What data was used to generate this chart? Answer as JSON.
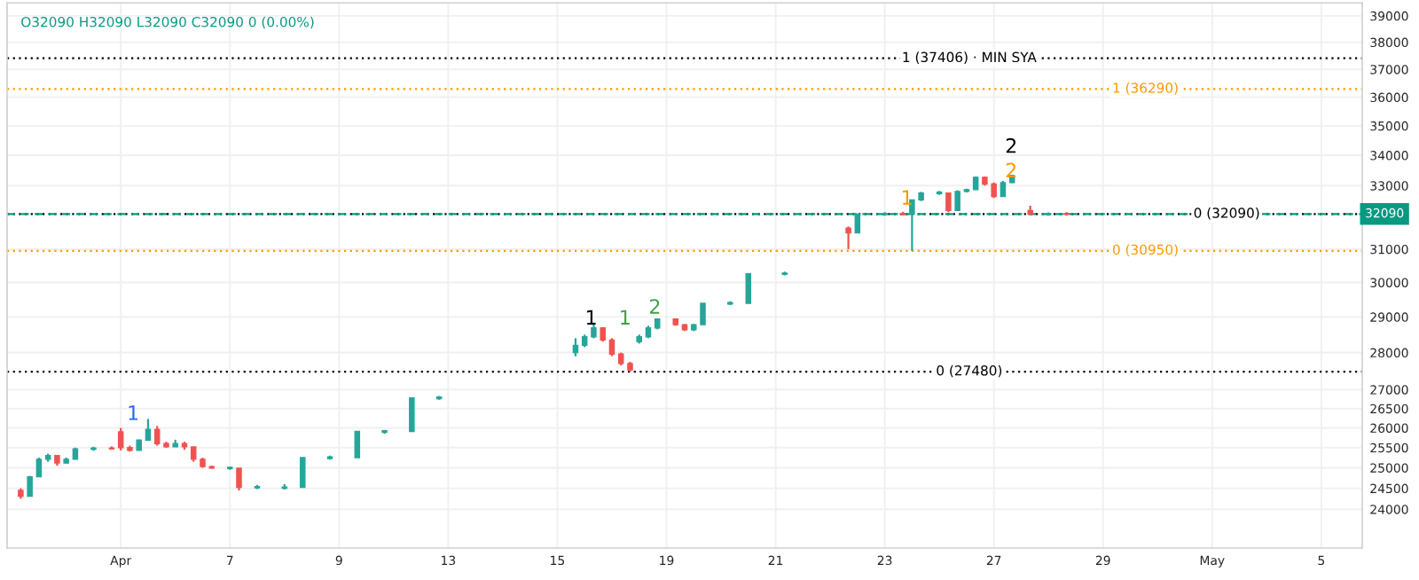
{
  "chart_data": {
    "type": "candlestick",
    "title": "O32090 H32090 L32090 C32090 0 (0.00%)",
    "categories": [
      null,
      null,
      null,
      null,
      null,
      null,
      null,
      null,
      null,
      null,
      null,
      null,
      "Apr",
      null,
      null,
      null,
      null,
      null,
      null,
      null,
      null,
      null,
      null,
      null,
      "7",
      null,
      null,
      null,
      null,
      null,
      null,
      null,
      null,
      null,
      null,
      null,
      "9",
      null,
      null,
      null,
      null,
      null,
      null,
      null,
      null,
      null,
      null,
      null,
      "13",
      null,
      null,
      null,
      null,
      null,
      null,
      null,
      null,
      null,
      null,
      null,
      "15",
      null,
      null,
      null,
      null,
      null,
      null,
      null,
      null,
      null,
      null,
      null,
      "19",
      null,
      null,
      null,
      null,
      null,
      null,
      null,
      null,
      null,
      null,
      null,
      "21",
      null,
      null,
      null,
      null,
      null,
      null,
      null,
      null,
      null,
      null,
      null,
      "23",
      null,
      null,
      null,
      null,
      null,
      null,
      null,
      null,
      null,
      null,
      null,
      "27",
      null,
      null,
      null,
      null,
      null,
      null,
      null,
      null,
      null,
      null,
      null,
      "29",
      null,
      null,
      null,
      null,
      null,
      null,
      null,
      null,
      null,
      null,
      null,
      "May",
      null,
      null,
      null,
      null,
      null,
      null,
      null,
      null,
      null,
      null,
      null,
      "5",
      null,
      null,
      null,
      null
    ],
    "ohlc": [
      null,
      [
        24450,
        24500,
        24250,
        24310
      ],
      [
        24310,
        24800,
        24310,
        24780
      ],
      [
        24780,
        25250,
        24780,
        25210
      ],
      [
        25210,
        25350,
        25150,
        25300
      ],
      [
        25300,
        25300,
        25050,
        25120
      ],
      [
        25120,
        25250,
        25100,
        25210
      ],
      [
        25210,
        25500,
        25210,
        25470
      ],
      null,
      [
        25460,
        25520,
        25420,
        25490
      ],
      null,
      [
        25490,
        25530,
        25450,
        25470
      ],
      [
        25900,
        26000,
        25430,
        25500
      ],
      [
        25500,
        25550,
        25400,
        25430
      ],
      [
        25430,
        25700,
        25430,
        25690
      ],
      [
        25690,
        26230,
        25690,
        25960
      ],
      [
        25960,
        26050,
        25550,
        25600
      ],
      [
        25600,
        25650,
        25500,
        25520
      ],
      [
        25520,
        25700,
        25520,
        25600
      ],
      [
        25600,
        25650,
        25450,
        25520
      ],
      [
        25520,
        25520,
        25150,
        25210
      ],
      [
        25210,
        25250,
        25000,
        25030
      ],
      [
        25030,
        25050,
        24980,
        24990
      ],
      null,
      [
        24980,
        25030,
        24950,
        25010
      ],
      [
        24990,
        24990,
        24450,
        24520
      ],
      null,
      [
        24510,
        24580,
        24480,
        24540
      ],
      null,
      null,
      [
        24500,
        24600,
        24470,
        24530
      ],
      null,
      [
        24520,
        25250,
        24520,
        25250
      ],
      null,
      null,
      [
        25230,
        25300,
        25200,
        25270
      ],
      null,
      null,
      [
        25250,
        25910,
        25250,
        25910
      ],
      null,
      null,
      [
        25890,
        25950,
        25850,
        25930
      ],
      null,
      null,
      [
        25910,
        26780,
        25910,
        26780
      ],
      null,
      null,
      [
        26760,
        26830,
        26730,
        26800
      ],
      null,
      null,
      null,
      null,
      null,
      null,
      null,
      null,
      null,
      null,
      null,
      null,
      null,
      null,
      [
        28000,
        28400,
        27900,
        28200
      ],
      [
        28200,
        28500,
        28150,
        28440
      ],
      [
        28440,
        28840,
        28400,
        28690
      ],
      [
        28690,
        28700,
        28300,
        28350
      ],
      [
        28350,
        28400,
        27900,
        27960
      ],
      [
        27960,
        28000,
        27650,
        27700
      ],
      [
        27700,
        27750,
        27480,
        27530
      ],
      [
        28300,
        28500,
        28250,
        28440
      ],
      [
        28440,
        28750,
        28400,
        28690
      ],
      [
        28690,
        28950,
        28650,
        28940
      ],
      null,
      [
        28940,
        28950,
        28750,
        28780
      ],
      [
        28780,
        28800,
        28600,
        28640
      ],
      [
        28640,
        28800,
        28600,
        28780
      ],
      [
        28780,
        29390,
        28780,
        29390
      ],
      null,
      null,
      [
        29370,
        29450,
        29340,
        29410
      ],
      null,
      [
        29390,
        30260,
        29390,
        30260
      ],
      null,
      null,
      null,
      [
        30240,
        30320,
        30210,
        30280
      ],
      null,
      null,
      null,
      null,
      null,
      null,
      [
        31650,
        31700,
        31000,
        31500
      ],
      [
        31500,
        32090,
        31500,
        32090
      ],
      null,
      null,
      [
        32070,
        32150,
        32040,
        32110
      ],
      null,
      [
        32110,
        32160,
        32050,
        32080
      ],
      [
        32090,
        32540,
        30950,
        32540
      ],
      [
        32540,
        32800,
        32500,
        32760
      ],
      null,
      [
        32740,
        32830,
        32700,
        32790
      ],
      [
        32760,
        32780,
        32150,
        32200
      ],
      [
        32200,
        32850,
        32200,
        32810
      ],
      [
        32810,
        32900,
        32780,
        32870
      ],
      [
        32870,
        33300,
        32870,
        33270
      ],
      [
        33270,
        33300,
        33000,
        33050
      ],
      [
        33050,
        33100,
        32600,
        32650
      ],
      [
        32650,
        33150,
        32650,
        33100
      ],
      [
        33100,
        33350,
        33080,
        33330
      ],
      null,
      [
        32200,
        32350,
        32080,
        32090
      ],
      null,
      [
        32070,
        32140,
        32040,
        32110
      ],
      null,
      [
        32110,
        32150,
        32050,
        32080
      ],
      null,
      null,
      null,
      null,
      null,
      null,
      null,
      null,
      null,
      null,
      null,
      null,
      null,
      null,
      null,
      null,
      null,
      null,
      null,
      null,
      null,
      null,
      null,
      null,
      null,
      null,
      null,
      null,
      null,
      null,
      null,
      null
    ],
    "log": true,
    "ylim": [
      23100,
      39500
    ],
    "yticks": [
      24000,
      24500,
      25000,
      25500,
      26000,
      26500,
      27000,
      28000,
      29000,
      30000,
      31000,
      33000,
      34000,
      35000,
      36000,
      37000,
      38000,
      39000
    ],
    "grid": true,
    "ref_lines": [
      {
        "axis": "y",
        "value": 37406,
        "label": "1 (37406) · MIN SYA",
        "color": "#000000",
        "line_style": "dotted"
      },
      {
        "axis": "y",
        "value": 36290,
        "label": "1 (36290)",
        "color": "#ff9800",
        "line_style": "dotted"
      },
      {
        "axis": "y",
        "value": 32090,
        "label": "0 (32090)",
        "color": "#000000",
        "line_style": "dotted"
      },
      {
        "axis": "y",
        "value": 32090,
        "label": "32090",
        "color": "#089981",
        "line_style": "dashed"
      },
      {
        "axis": "y",
        "value": 30950,
        "label": "0 (30950)",
        "color": "#ff9800",
        "line_style": "dotted"
      },
      {
        "axis": "y",
        "value": 27480,
        "label": "0 (27480)",
        "color": "#000000",
        "line_style": "dotted"
      }
    ],
    "annotations": [
      "1",
      "1",
      "1",
      "2",
      "1",
      "2",
      "2"
    ]
  }
}
